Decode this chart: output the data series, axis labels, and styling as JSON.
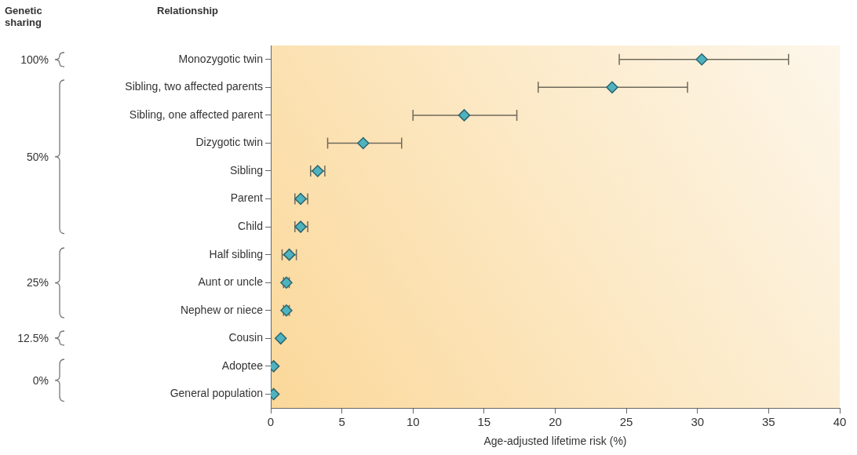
{
  "chart_data": {
    "type": "scatter",
    "ylabel": "Relationship",
    "xlabel": "Age-adjusted lifetime risk (%)",
    "categories": [
      "Monozygotic twin",
      "Sibling, two affected parents",
      "Sibling, one affected parent",
      "Dizygotic twin",
      "Sibling",
      "Parent",
      "Child",
      "Half sibling",
      "Aunt or uncle",
      "Nephew or niece",
      "Cousin",
      "Adoptee",
      "General population"
    ],
    "values": [
      30.3,
      24.0,
      13.6,
      6.5,
      3.3,
      2.1,
      2.1,
      1.3,
      1.1,
      1.1,
      0.7,
      0.2,
      0.2
    ],
    "errors": [
      [
        24.5,
        36.4
      ],
      [
        18.8,
        29.3
      ],
      [
        10.0,
        17.3
      ],
      [
        4.0,
        9.2
      ],
      [
        2.8,
        3.8
      ],
      [
        1.7,
        2.6
      ],
      [
        1.7,
        2.6
      ],
      [
        0.8,
        1.8
      ],
      [
        0.9,
        1.3
      ],
      [
        0.9,
        1.3
      ],
      null,
      null,
      null
    ],
    "color": "#4fb3bf",
    "marker": "diamond",
    "orientation": "horizontal",
    "xlim": [
      0,
      40
    ],
    "xticks": [
      0,
      5,
      10,
      15,
      20,
      25,
      30,
      35,
      40
    ],
    "grid": false,
    "legend": false,
    "annotations": [
      "Genetic sharing",
      "100%",
      "50%",
      "25%",
      "12.5%",
      "0%"
    ]
  }
}
